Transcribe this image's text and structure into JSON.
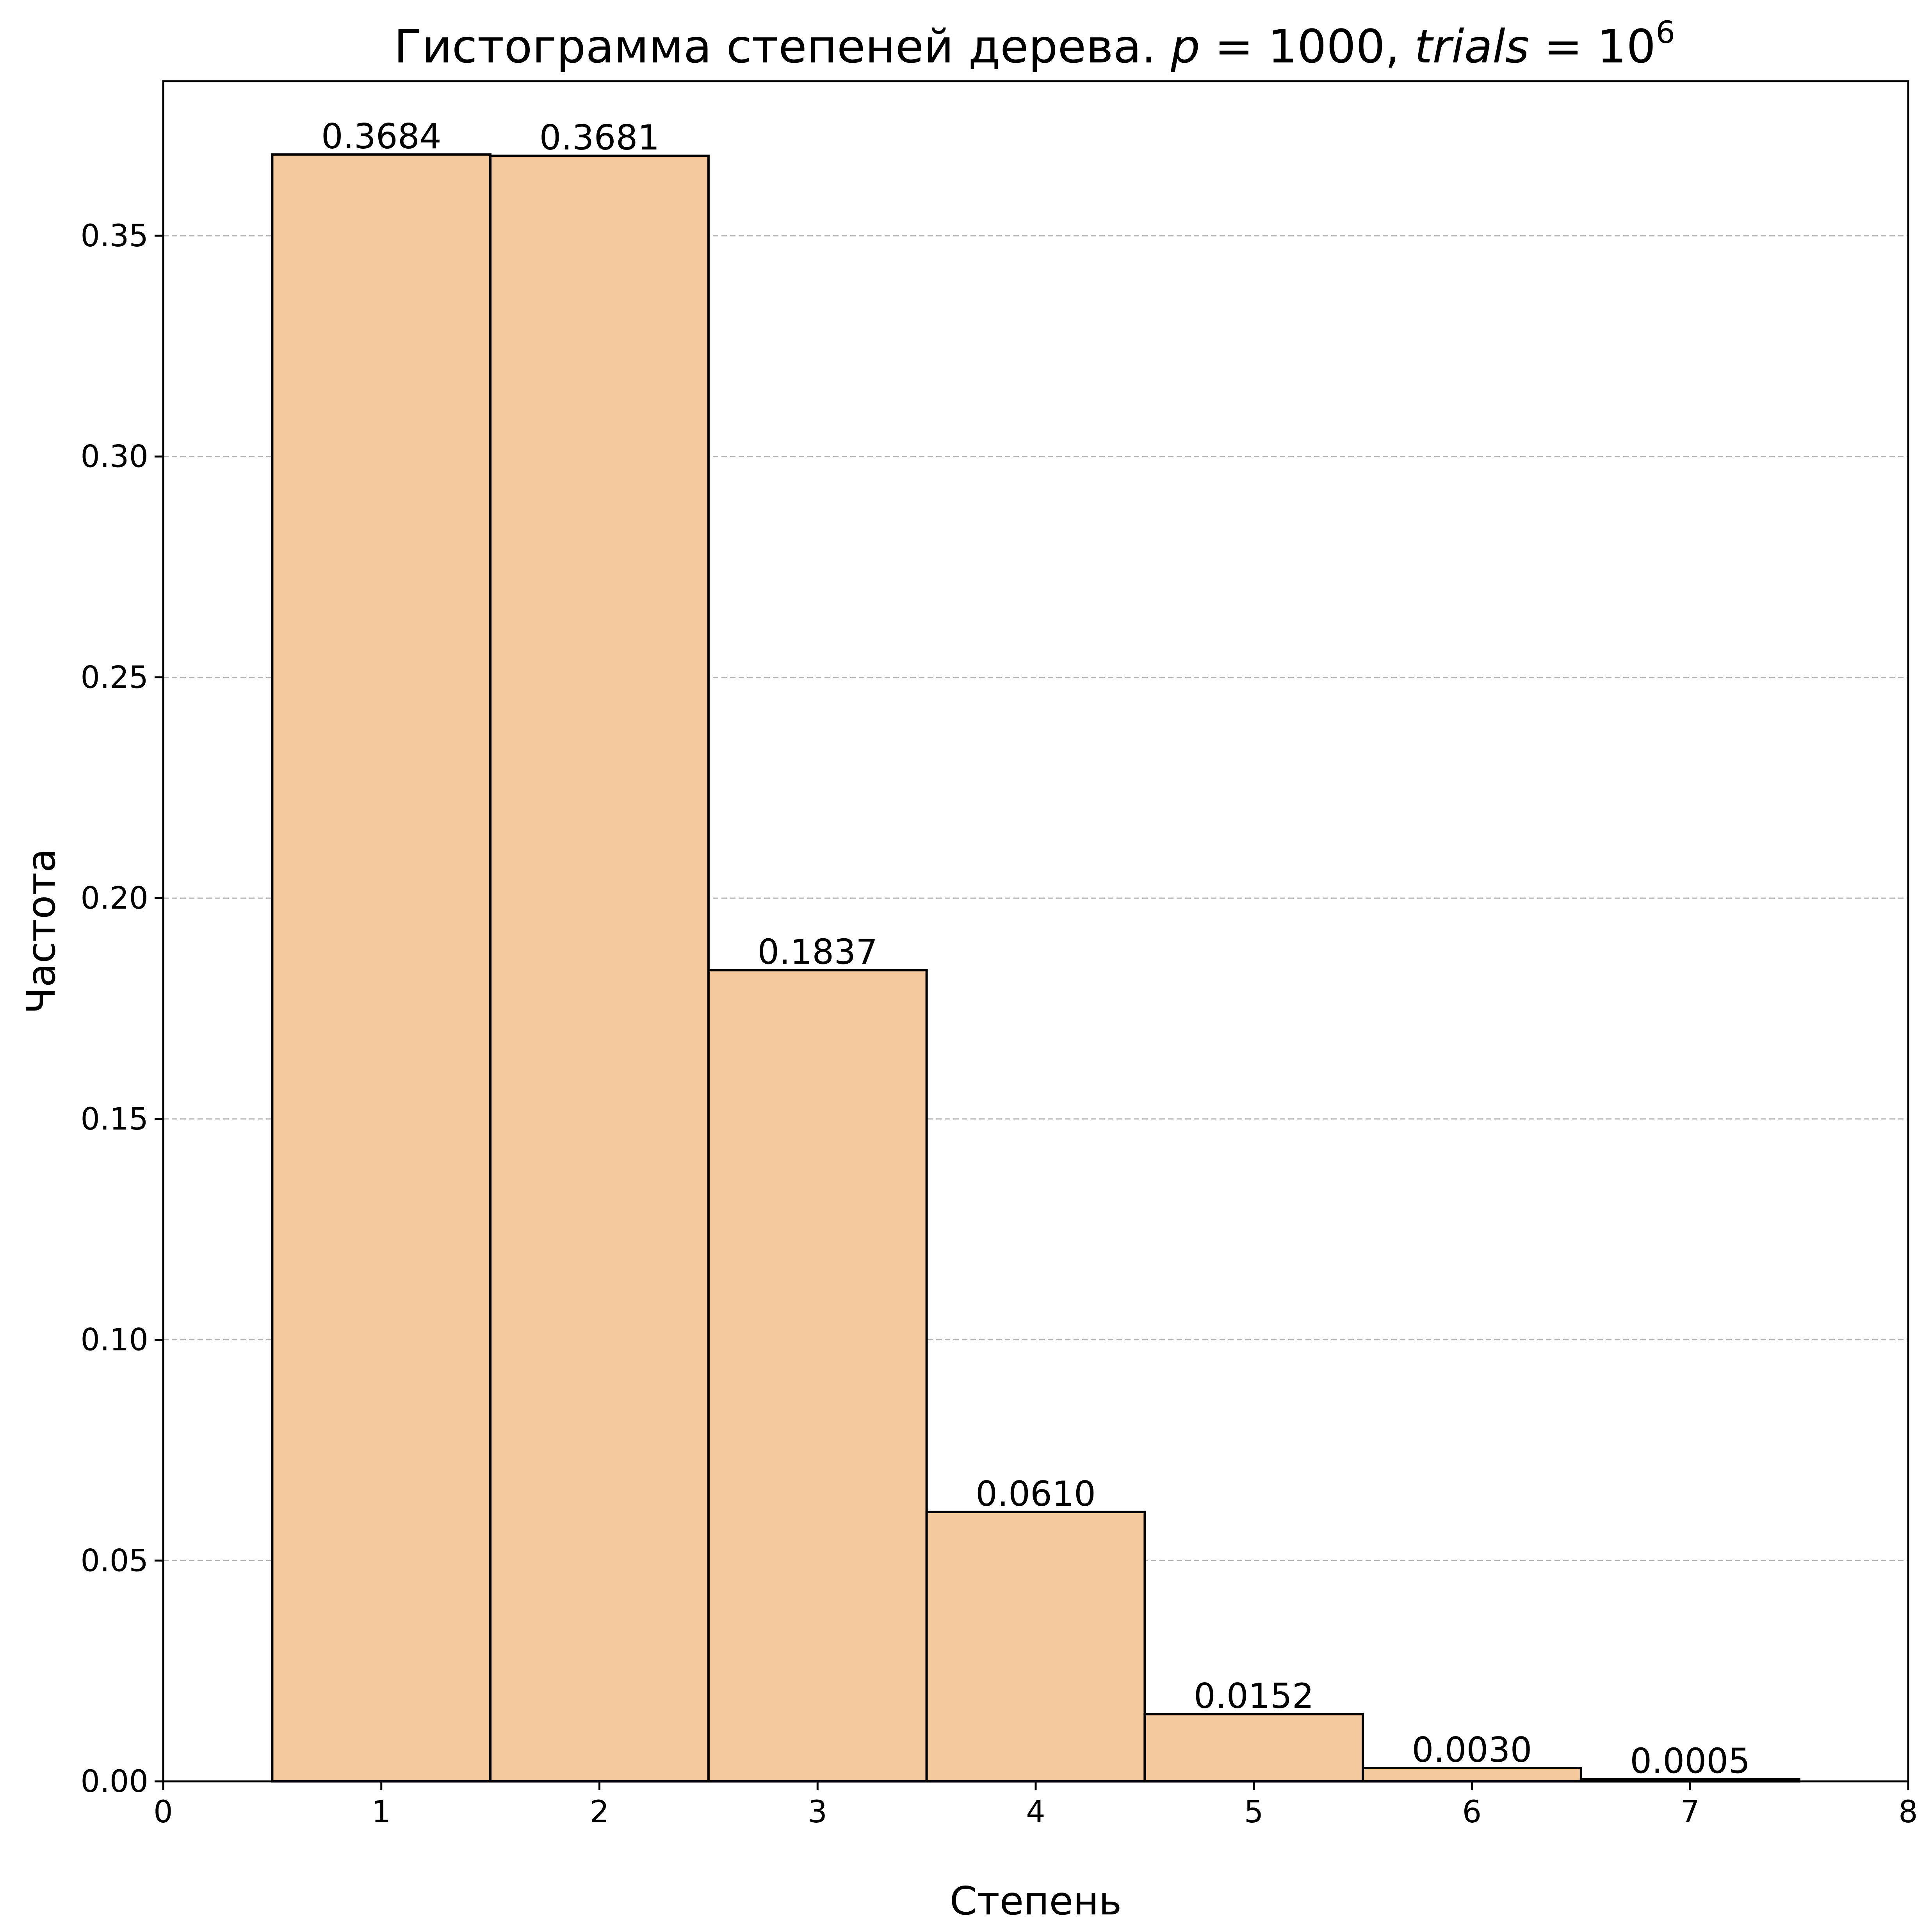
{
  "chart_data": {
    "type": "bar",
    "title": {
      "main": "Гистограмма степеней дерева. ",
      "p_var": "p",
      "eq": " = ",
      "p_val": "1000",
      "sep": ", ",
      "trials_var": "trials",
      "trials_base": "10",
      "trials_exp": "6"
    },
    "xlabel": "Степень",
    "ylabel": "Частота",
    "x": [
      1,
      2,
      3,
      4,
      5,
      6,
      7
    ],
    "values": [
      0.3684,
      0.3681,
      0.1837,
      0.061,
      0.0152,
      0.003,
      0.0005
    ],
    "data_labels": [
      "0.3684",
      "0.3681",
      "0.1837",
      "0.0610",
      "0.0152",
      "0.0030",
      "0.0005"
    ],
    "bar_width": 1,
    "xlim": [
      0,
      8
    ],
    "ylim": [
      0,
      0.385
    ],
    "x_ticks": [
      "0",
      "1",
      "2",
      "3",
      "4",
      "5",
      "6",
      "7",
      "8"
    ],
    "y_ticks": [
      "0.00",
      "0.05",
      "0.10",
      "0.15",
      "0.20",
      "0.25",
      "0.30",
      "0.35"
    ],
    "grid": "y-dashed",
    "legend": "none",
    "colors": {
      "bar_fill": "#f4c99e",
      "bar_edge": "#000000",
      "grid": "#b0b0b0"
    }
  }
}
